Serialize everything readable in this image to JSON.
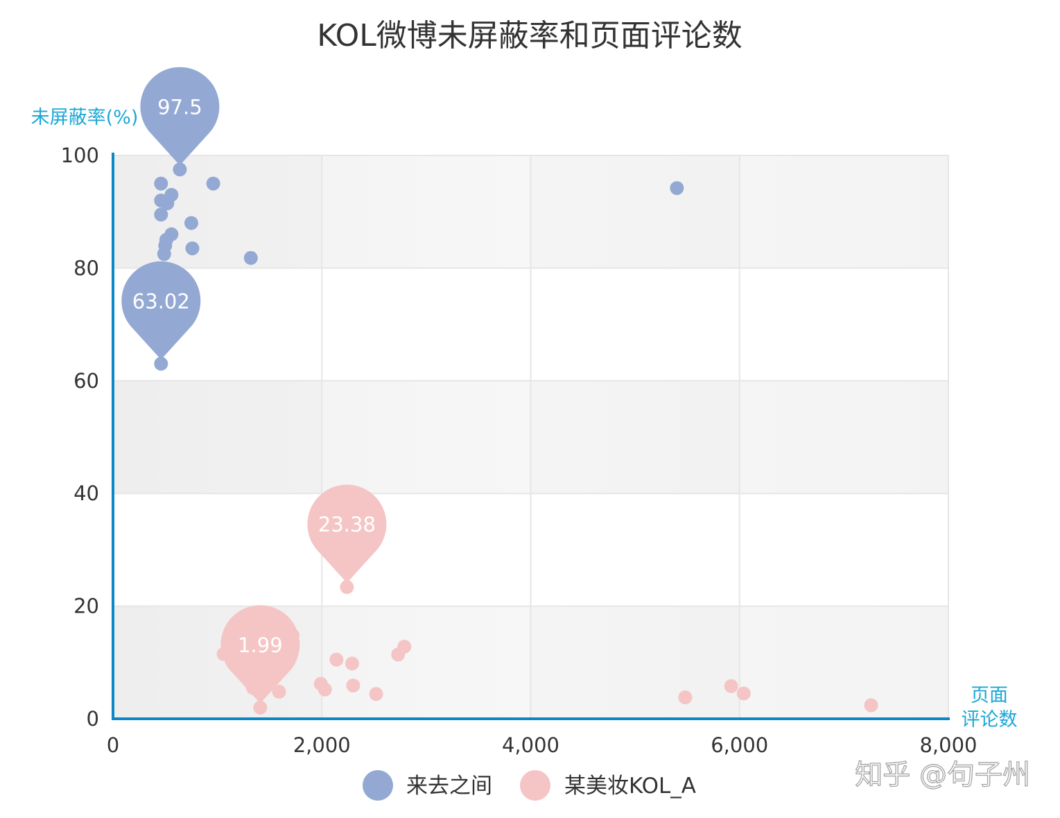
{
  "chart_data": {
    "type": "scatter",
    "title": "KOL微博未屏蔽率和页面评论数",
    "xlabel": "页面评论数",
    "ylabel": "未屏蔽率(%)",
    "xlim": [
      0,
      8000
    ],
    "ylim": [
      0,
      100
    ],
    "x_ticks": [
      0,
      2000,
      4000,
      6000,
      8000
    ],
    "x_tick_labels": [
      "0",
      "2,000",
      "4,000",
      "6,000",
      "8,000"
    ],
    "y_ticks": [
      0,
      20,
      40,
      60,
      80,
      100
    ],
    "y_tick_labels": [
      "0",
      "20",
      "40",
      "60",
      "80",
      "100"
    ],
    "grid": true,
    "legend_position": "bottom-center",
    "series": [
      {
        "name": "来去之间",
        "color": "#93a9d3",
        "points": [
          [
            640,
            97.5
          ],
          [
            460,
            95
          ],
          [
            960,
            95
          ],
          [
            560,
            93
          ],
          [
            460,
            92
          ],
          [
            520,
            91.5
          ],
          [
            460,
            89.5
          ],
          [
            750,
            88
          ],
          [
            560,
            86
          ],
          [
            510,
            85
          ],
          [
            500,
            84
          ],
          [
            760,
            83.5
          ],
          [
            490,
            82.5
          ],
          [
            1320,
            81.8
          ],
          [
            460,
            63.02
          ],
          [
            5400,
            94.2
          ]
        ],
        "marked_points": [
          {
            "x": 640,
            "y": 97.5,
            "label": "97.5"
          },
          {
            "x": 460,
            "y": 63.02,
            "label": "63.02"
          }
        ]
      },
      {
        "name": "某美妆KOL_A",
        "color": "#f5c5c5",
        "points": [
          [
            1720,
            14.8
          ],
          [
            1060,
            11.5
          ],
          [
            1420,
            10
          ],
          [
            1340,
            5.5
          ],
          [
            1590,
            4.8
          ],
          [
            1410,
            1.99
          ],
          [
            2140,
            10.5
          ],
          [
            2290,
            9.8
          ],
          [
            1990,
            6.2
          ],
          [
            2030,
            5.2
          ],
          [
            2300,
            5.9
          ],
          [
            2520,
            4.4
          ],
          [
            2790,
            12.8
          ],
          [
            2730,
            11.4
          ],
          [
            2240,
            23.38
          ],
          [
            5480,
            3.8
          ],
          [
            5920,
            5.8
          ],
          [
            6040,
            4.5
          ],
          [
            7260,
            2.4
          ]
        ],
        "marked_points": [
          {
            "x": 2240,
            "y": 23.38,
            "label": "23.38"
          },
          {
            "x": 1410,
            "y": 1.99,
            "label": "1.99"
          }
        ]
      }
    ]
  },
  "watermark": "知乎 @句子州"
}
